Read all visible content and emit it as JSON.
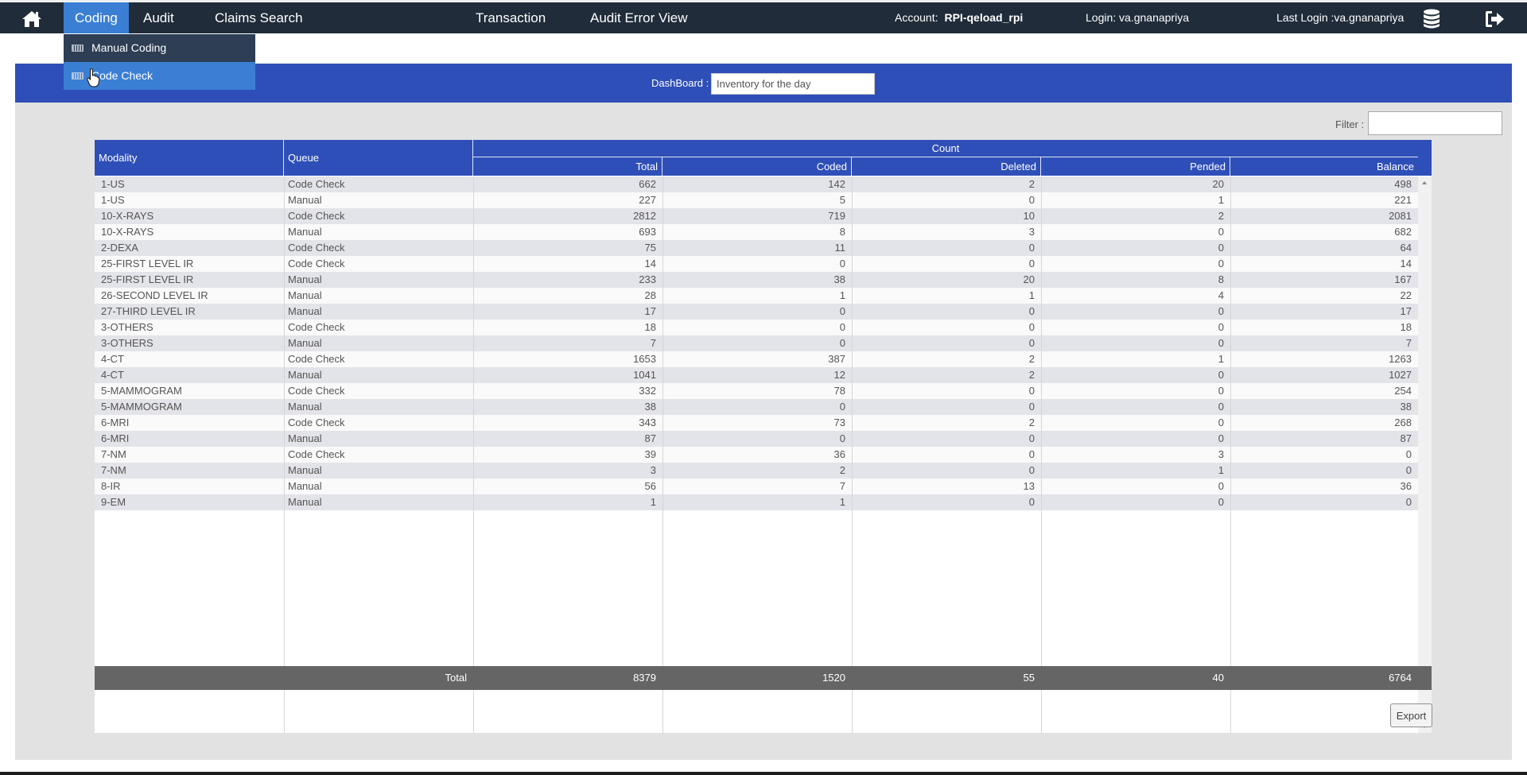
{
  "nav": {
    "items": [
      {
        "label": "Coding",
        "active": true
      },
      {
        "label": "Audit"
      },
      {
        "label": "Claims Search"
      },
      {
        "label": "Transaction"
      },
      {
        "label": "Audit Error View"
      }
    ],
    "account_label": "Account:",
    "account_value": "RPI-qeload_rpi",
    "login_text": "Login: va.gnanapriya",
    "last_login_text": "Last Login :va.gnanapriya"
  },
  "dropdown": {
    "items": [
      {
        "label": "Manual Coding"
      },
      {
        "label": "Code Check"
      }
    ]
  },
  "dashboard": {
    "label": "DashBoard :",
    "value": "Inventory for the day"
  },
  "filter": {
    "label": "Filter :",
    "value": ""
  },
  "table": {
    "headers": {
      "modality": "Modality",
      "queue": "Queue",
      "count": "Count",
      "total": "Total",
      "coded": "Coded",
      "deleted": "Deleted",
      "pended": "Pended",
      "balance": "Balance"
    },
    "rows": [
      [
        "1-US",
        "Code Check",
        "662",
        "142",
        "2",
        "20",
        "498"
      ],
      [
        "1-US",
        "Manual",
        "227",
        "5",
        "0",
        "1",
        "221"
      ],
      [
        "10-X-RAYS",
        "Code Check",
        "2812",
        "719",
        "10",
        "2",
        "2081"
      ],
      [
        "10-X-RAYS",
        "Manual",
        "693",
        "8",
        "3",
        "0",
        "682"
      ],
      [
        "2-DEXA",
        "Code Check",
        "75",
        "11",
        "0",
        "0",
        "64"
      ],
      [
        "25-FIRST LEVEL IR",
        "Code Check",
        "14",
        "0",
        "0",
        "0",
        "14"
      ],
      [
        "25-FIRST LEVEL IR",
        "Manual",
        "233",
        "38",
        "20",
        "8",
        "167"
      ],
      [
        "26-SECOND LEVEL IR",
        "Manual",
        "28",
        "1",
        "1",
        "4",
        "22"
      ],
      [
        "27-THIRD LEVEL IR",
        "Manual",
        "17",
        "0",
        "0",
        "0",
        "17"
      ],
      [
        "3-OTHERS",
        "Code Check",
        "18",
        "0",
        "0",
        "0",
        "18"
      ],
      [
        "3-OTHERS",
        "Manual",
        "7",
        "0",
        "0",
        "0",
        "7"
      ],
      [
        "4-CT",
        "Code Check",
        "1653",
        "387",
        "2",
        "1",
        "1263"
      ],
      [
        "4-CT",
        "Manual",
        "1041",
        "12",
        "2",
        "0",
        "1027"
      ],
      [
        "5-MAMMOGRAM",
        "Code Check",
        "332",
        "78",
        "0",
        "0",
        "254"
      ],
      [
        "5-MAMMOGRAM",
        "Manual",
        "38",
        "0",
        "0",
        "0",
        "38"
      ],
      [
        "6-MRI",
        "Code Check",
        "343",
        "73",
        "2",
        "0",
        "268"
      ],
      [
        "6-MRI",
        "Manual",
        "87",
        "0",
        "0",
        "0",
        "87"
      ],
      [
        "7-NM",
        "Code Check",
        "39",
        "36",
        "0",
        "3",
        "0"
      ],
      [
        "7-NM",
        "Manual",
        "3",
        "2",
        "0",
        "1",
        "0"
      ],
      [
        "8-IR",
        "Manual",
        "56",
        "7",
        "13",
        "0",
        "36"
      ],
      [
        "9-EM",
        "Manual",
        "1",
        "1",
        "0",
        "0",
        "0"
      ]
    ],
    "totals": {
      "label": "Total",
      "total": "8379",
      "coded": "1520",
      "deleted": "55",
      "pended": "40",
      "balance": "6764"
    }
  },
  "export_label": "Export",
  "icons": {
    "home": "home-icon",
    "database": "database-icon",
    "logout": "logout-icon",
    "menu_item": "keyboard-icon"
  },
  "colors": {
    "topbar": "#202c3a",
    "accent_blue": "#3b7fd4",
    "header_blue": "#2f4fb8",
    "footer_gray": "#656565"
  }
}
